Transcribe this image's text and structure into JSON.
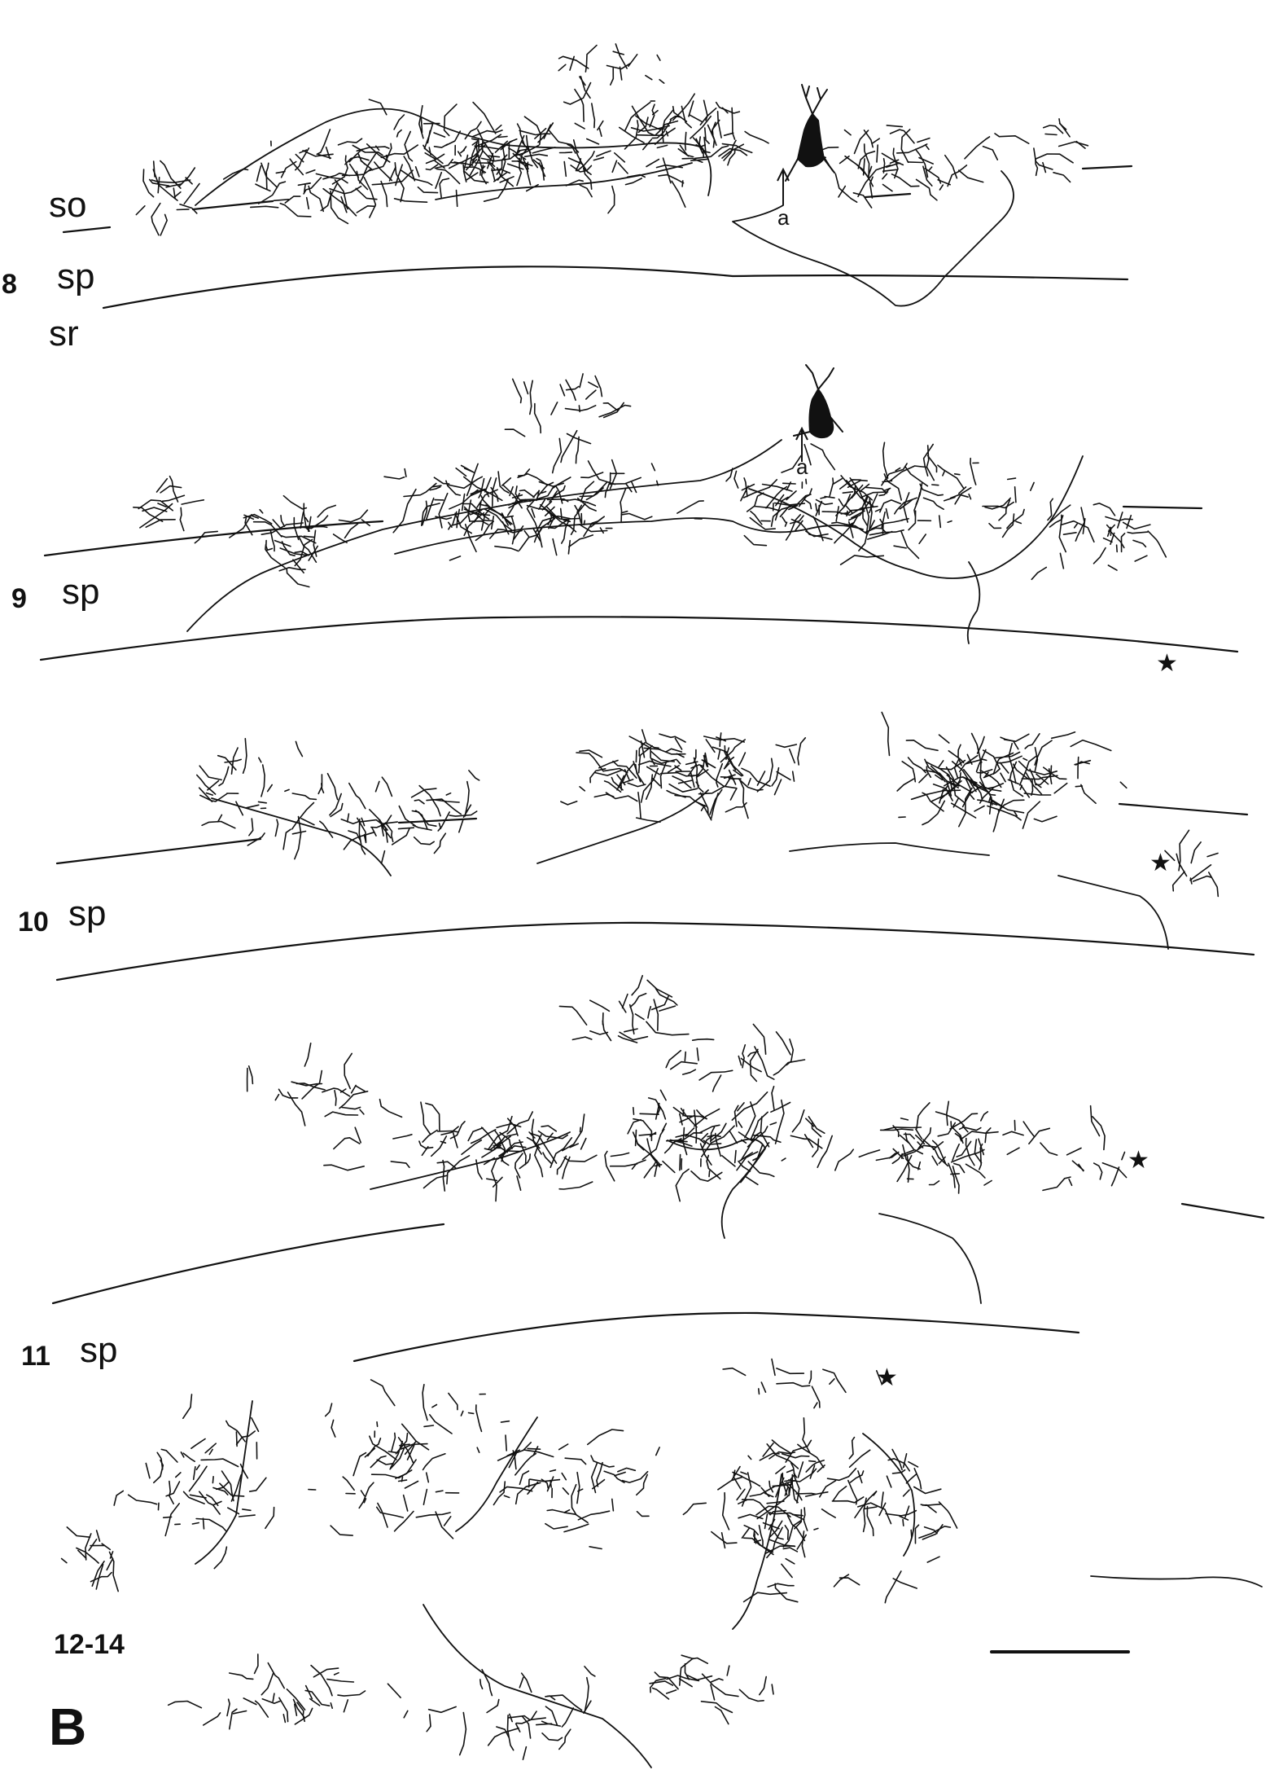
{
  "figure": {
    "panel_letter": "B",
    "layer_labels": {
      "so": "so",
      "sp": "sp",
      "sr": "sr"
    },
    "axon_label": "a",
    "star_symbol": "★",
    "sections": [
      {
        "number": "8"
      },
      {
        "number": "9"
      },
      {
        "number": "10"
      },
      {
        "number": "11"
      },
      {
        "number": "12-14"
      }
    ]
  }
}
